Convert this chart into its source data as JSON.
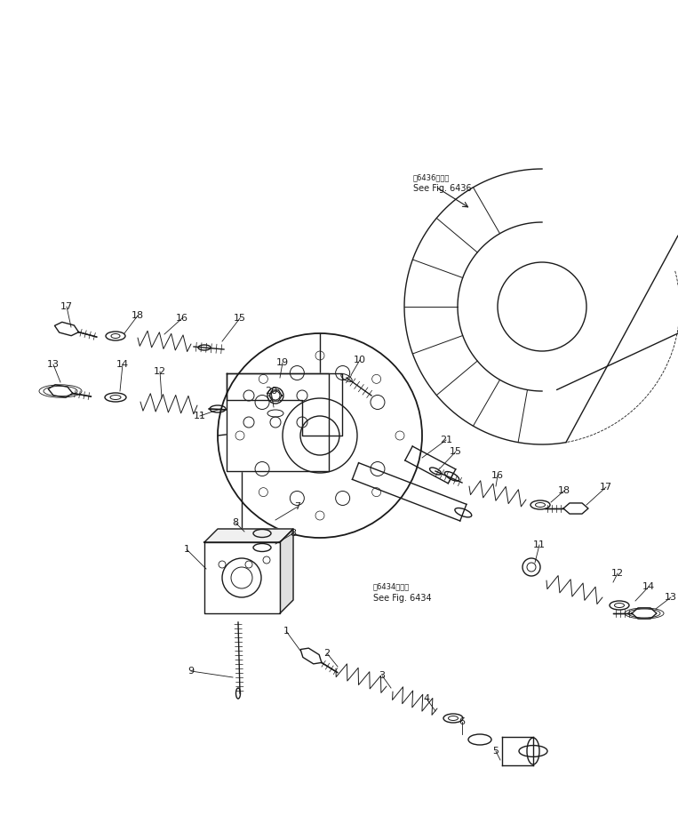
{
  "bg_color": "#ffffff",
  "line_color": "#1a1a1a",
  "fig_width": 7.63,
  "fig_height": 9.27,
  "dpi": 100,
  "ref6436_line1": "第6436図参照",
  "ref6436_line2": "See Fig. 6436",
  "ref6434_line1": "第6434図参照",
  "ref6434_line2": "See Fig. 6434"
}
